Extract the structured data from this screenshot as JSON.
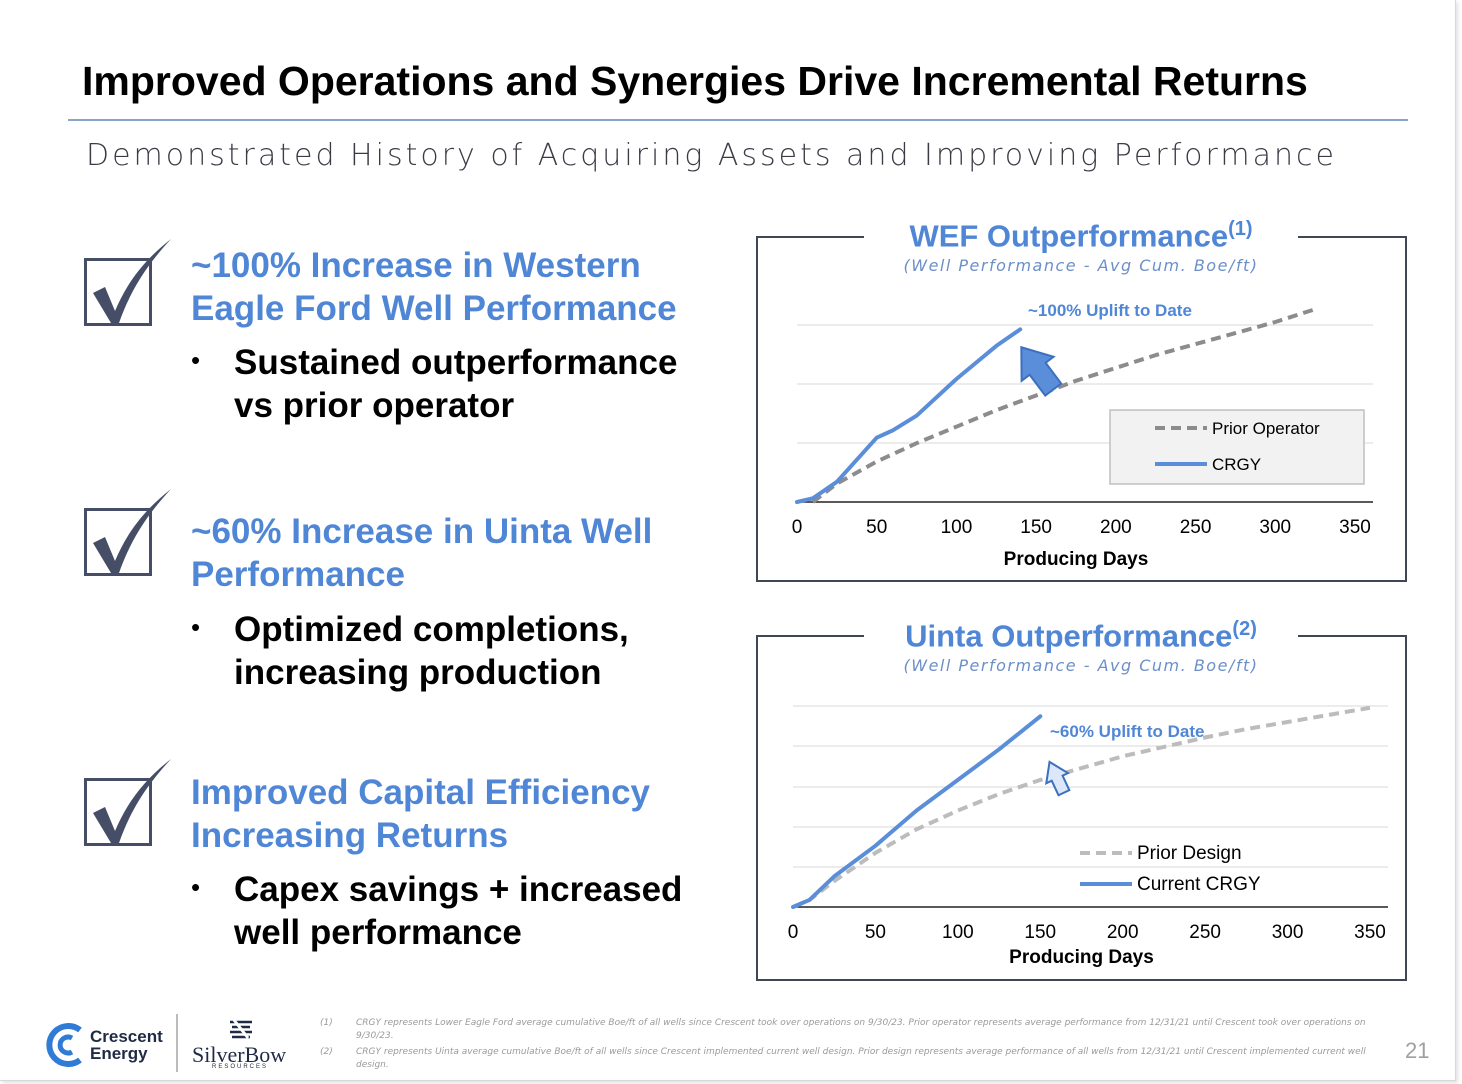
{
  "slide": {
    "title": "Improved Operations and Synergies Drive Incremental Returns",
    "subtitle": "Demonstrated History of Acquiring Assets and Improving Performance",
    "page_number": "21"
  },
  "points": [
    {
      "heading": [
        "~100% Increase in Western",
        "Eagle Ford Well Performance"
      ],
      "bullet": [
        "Sustained outperformance",
        "vs prior operator"
      ]
    },
    {
      "heading": [
        "~60% Increase in Uinta Well",
        "Performance"
      ],
      "bullet": [
        "Optimized completions,",
        "increasing production"
      ]
    },
    {
      "heading": [
        "Improved Capital Efficiency",
        "Increasing Returns"
      ],
      "bullet": [
        "Capex savings + increased",
        "well performance"
      ]
    }
  ],
  "bullet_symbol": "•",
  "icons": {
    "checkbox": "checkbox-checked-icon",
    "uplift_arrow": "arrow-up-right-icon"
  },
  "colors": {
    "accent_blue": "#4f86d6",
    "crgy_line": "#5b8ed8",
    "prior_operator_line": "#8c8c8c",
    "prior_design_line": "#bcbcbc",
    "frame": "#3f4654"
  },
  "chart_data": [
    {
      "type": "line",
      "title": "WEF Outperformance",
      "title_sup": "(1)",
      "subtitle": "(Well Performance - Avg Cum. Boe/ft)",
      "xlabel": "Producing Days",
      "ylabel": "",
      "xlim": [
        0,
        350
      ],
      "x_ticks": [
        "0",
        "50",
        "100",
        "150",
        "200",
        "250",
        "300",
        "350"
      ],
      "y_gridlines": 4,
      "annotation": "~100% Uplift to Date",
      "legend_position": "right",
      "series": [
        {
          "name": "Prior Operator",
          "style": "dashed",
          "color": "#8c8c8c",
          "x": [
            10,
            25,
            50,
            75,
            100,
            125,
            150,
            175,
            200,
            225,
            250,
            275,
            300,
            325
          ],
          "y": [
            0.0,
            0.5,
            1.1,
            1.6,
            2.05,
            2.5,
            2.9,
            3.3,
            3.65,
            4.0,
            4.3,
            4.6,
            4.9,
            5.25
          ]
        },
        {
          "name": "CRGY",
          "style": "solid",
          "color": "#5b8ed8",
          "x": [
            0,
            10,
            25,
            50,
            60,
            75,
            100,
            125,
            140
          ],
          "y": [
            0.0,
            0.1,
            0.55,
            1.75,
            1.95,
            2.35,
            3.35,
            4.25,
            4.7
          ]
        }
      ]
    },
    {
      "type": "line",
      "title": "Uinta Outperformance",
      "title_sup": "(2)",
      "subtitle": "(Well Performance - Avg Cum. Boe/ft)",
      "xlabel": "Producing Days",
      "ylabel": "",
      "xlim": [
        0,
        350
      ],
      "x_ticks": [
        "0",
        "50",
        "100",
        "150",
        "200",
        "250",
        "300",
        "350"
      ],
      "y_gridlines": 5,
      "annotation": "~60% Uplift to Date",
      "legend_position": "bottom-right",
      "series": [
        {
          "name": "Prior Design",
          "style": "dashed",
          "color": "#bcbcbc",
          "x": [
            0,
            10,
            25,
            50,
            75,
            100,
            125,
            150,
            175,
            200,
            225,
            250,
            275,
            300,
            325,
            350
          ],
          "y": [
            0.0,
            0.15,
            0.55,
            1.15,
            1.65,
            2.05,
            2.4,
            2.7,
            2.95,
            3.2,
            3.4,
            3.6,
            3.78,
            3.93,
            4.08,
            4.23
          ]
        },
        {
          "name": "Current CRGY",
          "style": "solid",
          "color": "#5b8ed8",
          "x": [
            0,
            10,
            25,
            50,
            75,
            100,
            125,
            150
          ],
          "y": [
            0.0,
            0.15,
            0.65,
            1.3,
            2.05,
            2.7,
            3.35,
            4.05
          ]
        }
      ]
    }
  ],
  "footer": {
    "crescent_line1": "Crescent",
    "crescent_line2": "Energy",
    "silverbow": "SilverBow",
    "silverbow_sub": "RESOURCES",
    "footnotes": [
      {
        "num": "(1)",
        "text": "CRGY represents Lower Eagle Ford average cumulative Boe/ft of all wells since Crescent took over operations on 9/30/23. Prior operator represents average performance from 12/31/21 until Crescent took over operations on 9/30/23."
      },
      {
        "num": "(2)",
        "text": "CRGY represents Uinta average cumulative Boe/ft of all wells since Crescent implemented current well design. Prior design represents average performance of all wells from 12/31/21 until Crescent implemented current well design."
      }
    ]
  }
}
